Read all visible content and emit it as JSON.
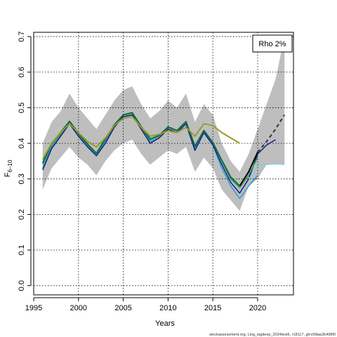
{
  "chart_data": {
    "type": "line",
    "title": "",
    "xlabel": "Years",
    "ylabel": "F",
    "ylabel_subscript": "6–10",
    "xlim": [
      1995,
      2024
    ],
    "ylim": [
      0,
      0.7
    ],
    "x_ticks": [
      1995,
      2000,
      2005,
      2010,
      2015,
      2020
    ],
    "y_ticks": [
      0.0,
      0.1,
      0.2,
      0.3,
      0.4,
      0.5,
      0.6,
      0.7
    ],
    "grid": true,
    "legend": {
      "position": "top-right",
      "text": "Rho 2%"
    },
    "footer": "stockassessment.org, Ling_wgdeep_2024test5, r18117, git:e58aa2b498f0",
    "colors": {
      "band": "#bebebe",
      "grid": "#000000",
      "projection_upper": "#bebebe"
    },
    "band": {
      "x": [
        1996,
        1997,
        1998,
        1999,
        2000,
        2001,
        2002,
        2003,
        2004,
        2005,
        2006,
        2007,
        2008,
        2009,
        2010,
        2011,
        2012,
        2013,
        2014,
        2015,
        2016,
        2017,
        2018,
        2019,
        2020,
        2021,
        2022,
        2023
      ],
      "upper": [
        0.4,
        0.46,
        0.49,
        0.54,
        0.5,
        0.47,
        0.44,
        0.48,
        0.52,
        0.55,
        0.56,
        0.51,
        0.47,
        0.49,
        0.52,
        0.5,
        0.54,
        0.46,
        0.51,
        0.48,
        0.4,
        0.35,
        0.32,
        0.37,
        0.44,
        0.51,
        0.58,
        0.7
      ],
      "lower": [
        0.27,
        0.33,
        0.36,
        0.39,
        0.36,
        0.34,
        0.31,
        0.35,
        0.38,
        0.4,
        0.41,
        0.37,
        0.34,
        0.36,
        0.38,
        0.37,
        0.39,
        0.32,
        0.36,
        0.33,
        0.27,
        0.24,
        0.21,
        0.28,
        0.3,
        0.34,
        0.34,
        0.34
      ]
    },
    "series": [
      {
        "color": "#20a0d0",
        "width": 1.5,
        "x": [
          1996,
          1997,
          1998,
          1999,
          2000,
          2001,
          2002,
          2003,
          2004,
          2005,
          2006,
          2007,
          2008,
          2009,
          2010,
          2011,
          2012,
          2013,
          2014,
          2015,
          2016,
          2017,
          2018,
          2019,
          2020
        ],
        "y": [
          0.33,
          0.39,
          0.42,
          0.455,
          0.42,
          0.39,
          0.37,
          0.405,
          0.445,
          0.475,
          0.48,
          0.44,
          0.405,
          0.415,
          0.44,
          0.43,
          0.455,
          0.385,
          0.43,
          0.395,
          0.33,
          0.28,
          0.245,
          0.28,
          0.31
        ]
      },
      {
        "color": "#1a1a8c",
        "width": 1.5,
        "x": [
          1996,
          1997,
          1998,
          1999,
          2000,
          2001,
          2002,
          2003,
          2004,
          2005,
          2006,
          2007,
          2008,
          2009,
          2010,
          2011,
          2012,
          2013,
          2014,
          2015,
          2016,
          2017,
          2018,
          2019,
          2020,
          2021,
          2022
        ],
        "y": [
          0.325,
          0.385,
          0.42,
          0.455,
          0.42,
          0.39,
          0.365,
          0.4,
          0.445,
          0.475,
          0.48,
          0.44,
          0.4,
          0.415,
          0.44,
          0.43,
          0.455,
          0.38,
          0.43,
          0.395,
          0.34,
          0.29,
          0.26,
          0.3,
          0.37,
          0.395,
          0.41
        ]
      },
      {
        "color": "#2e9e5a",
        "width": 1.5,
        "x": [
          1996,
          1997,
          1998,
          1999,
          2000,
          2001,
          2002,
          2003,
          2004,
          2005,
          2006,
          2007,
          2008,
          2009,
          2010,
          2011,
          2012,
          2013,
          2014,
          2015,
          2016,
          2017,
          2018,
          2019,
          2020
        ],
        "y": [
          0.34,
          0.395,
          0.425,
          0.46,
          0.425,
          0.395,
          0.37,
          0.41,
          0.45,
          0.48,
          0.485,
          0.445,
          0.41,
          0.42,
          0.445,
          0.435,
          0.46,
          0.39,
          0.435,
          0.4,
          0.35,
          0.3,
          0.275,
          0.31,
          0.36
        ]
      },
      {
        "color": "#0e6b40",
        "width": 2,
        "x": [
          1996,
          1997,
          1998,
          1999,
          2000,
          2001,
          2002,
          2003,
          2004,
          2005,
          2006,
          2007,
          2008,
          2009,
          2010,
          2011,
          2012,
          2013,
          2014,
          2015,
          2016,
          2017,
          2018
        ],
        "y": [
          0.345,
          0.4,
          0.43,
          0.462,
          0.428,
          0.398,
          0.372,
          0.412,
          0.452,
          0.48,
          0.486,
          0.447,
          0.412,
          0.422,
          0.446,
          0.436,
          0.461,
          0.392,
          0.436,
          0.402,
          0.352,
          0.305,
          0.28
        ]
      },
      {
        "color": "#9a9a2a",
        "width": 2,
        "x": [
          1996,
          1997,
          1998,
          1999,
          2000,
          2001,
          2002,
          2003,
          2004,
          2005,
          2006,
          2007,
          2008,
          2009,
          2010,
          2011,
          2012,
          2013,
          2014,
          2015,
          2016,
          2017,
          2018
        ],
        "y": [
          0.355,
          0.4,
          0.43,
          0.455,
          0.43,
          0.405,
          0.39,
          0.415,
          0.45,
          0.47,
          0.475,
          0.445,
          0.42,
          0.425,
          0.435,
          0.43,
          0.445,
          0.42,
          0.455,
          0.45,
          0.43,
          0.415,
          0.4
        ]
      },
      {
        "color": "#70d8e8",
        "width": 1.2,
        "x": [
          2019,
          2020,
          2021,
          2022,
          2023
        ],
        "y": [
          0.3,
          0.335,
          0.34,
          0.342,
          0.34
        ]
      },
      {
        "color": "#000000",
        "width": 2,
        "x": [
          2018,
          2019,
          2020
        ],
        "y": [
          0.28,
          0.32,
          0.375
        ]
      },
      {
        "color": "#333333",
        "width": 2,
        "dashed": true,
        "x": [
          2020,
          2021,
          2022,
          2023
        ],
        "y": [
          0.375,
          0.405,
          0.44,
          0.48
        ]
      }
    ]
  }
}
